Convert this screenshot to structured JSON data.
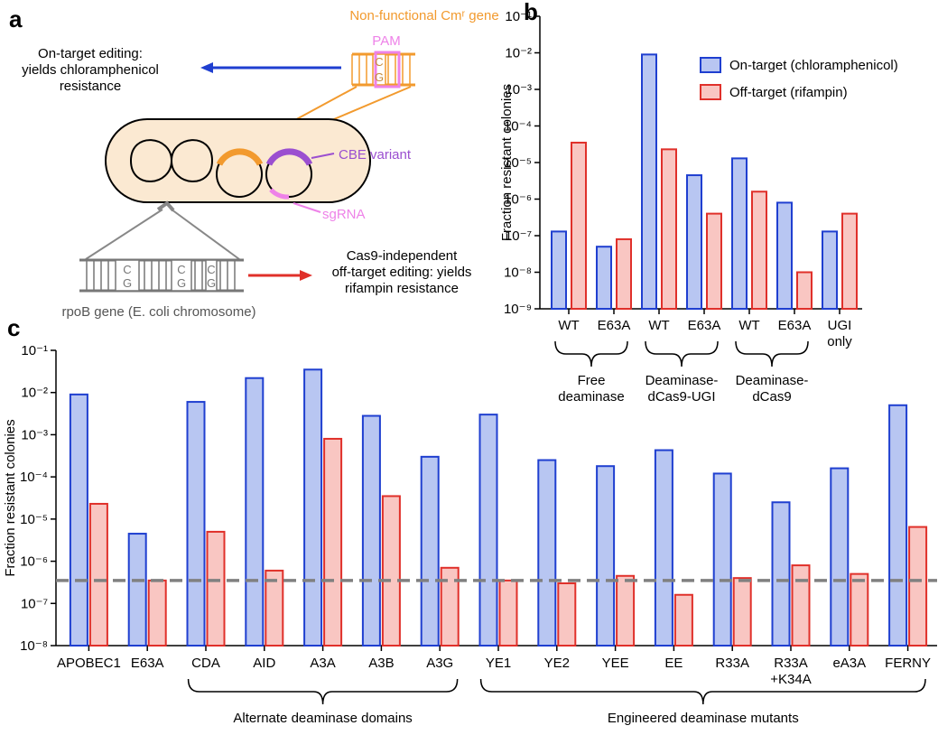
{
  "panel_a": {
    "label": "a",
    "gene_title": "Non-functional Cmʳ gene",
    "pam": "PAM",
    "base_c": "C",
    "base_g": "G",
    "on_target_text": "On-target editing:\nyields chloramphenicol\nresistance",
    "cbe": "CBE variant",
    "sgrna": "sgRNA",
    "off_target_text": "Cas9-independent\noff-target editing: yields\nrifampin resistance",
    "rpob": "rpoB gene (E. coli chromosome)"
  },
  "chart_data": [
    {
      "type": "bar",
      "panel_label": "b",
      "ylabel": "Fraction resistant colonies",
      "log_scale": true,
      "categories": [
        "WT",
        "E63A",
        "WT",
        "E63A",
        "WT",
        "E63A",
        "UGI\nonly"
      ],
      "groups": [
        "Free\ndeaminase",
        "Deaminase-\ndCas9-UGI",
        "Deaminase-\ndCas9"
      ],
      "series": [
        {
          "name": "On-target (chloramphenicol)",
          "color": "#1f3fd0",
          "fill": "#b8c6f2",
          "values": [
            1.3e-07,
            5e-08,
            0.009,
            4.5e-06,
            1.3e-05,
            8e-07,
            1.3e-07
          ]
        },
        {
          "name": "Off-target (rifampin)",
          "color": "#e0302a",
          "fill": "#f9c6c2",
          "values": [
            3.5e-05,
            8e-08,
            2.3e-05,
            4e-07,
            1.6e-06,
            1e-08,
            4e-07
          ]
        }
      ],
      "ylim": [
        1e-09,
        0.1
      ],
      "yticks": [
        {
          "value": 1e-09,
          "label": "10⁻⁹"
        },
        {
          "value": 1e-08,
          "label": "10⁻⁸"
        },
        {
          "value": 1e-07,
          "label": "10⁻⁷"
        },
        {
          "value": 1e-06,
          "label": "10⁻⁶"
        },
        {
          "value": 1e-05,
          "label": "10⁻⁵"
        },
        {
          "value": 0.0001,
          "label": "10⁻⁴"
        },
        {
          "value": 0.001,
          "label": "10⁻³"
        },
        {
          "value": 0.01,
          "label": "10⁻²"
        },
        {
          "value": 0.1,
          "label": "10⁻¹"
        }
      ],
      "legend": "top-right"
    },
    {
      "type": "bar",
      "panel_label": "c",
      "ylabel": "Fraction resistant colonies",
      "log_scale": true,
      "categories": [
        "APOBEC1",
        "E63A",
        "CDA",
        "AID",
        "A3A",
        "A3B",
        "A3G",
        "YE1",
        "YE2",
        "YEE",
        "EE",
        "R33A",
        "R33A\n+K34A",
        "eA3A",
        "FERNY"
      ],
      "groups": [
        "Alternate deaminase domains",
        "Engineered deaminase mutants"
      ],
      "series": [
        {
          "name": "On-target (chloramphenicol)",
          "color": "#1f3fd0",
          "fill": "#b8c6f2",
          "values": [
            0.009,
            4.5e-06,
            0.006,
            0.022,
            0.035,
            0.0028,
            0.0003,
            0.003,
            0.00025,
            0.00018,
            0.00043,
            0.00012,
            2.5e-05,
            0.00016,
            0.005
          ]
        },
        {
          "name": "Off-target (rifampin)",
          "color": "#e0302a",
          "fill": "#f9c6c2",
          "values": [
            2.3e-05,
            3.5e-07,
            5e-06,
            6e-07,
            0.0008,
            3.5e-05,
            7e-07,
            3.5e-07,
            3e-07,
            4.5e-07,
            1.6e-07,
            4e-07,
            8e-07,
            5e-07,
            6.5e-06
          ]
        }
      ],
      "reference_line": 3.5e-07,
      "ylim": [
        1e-08,
        0.1
      ],
      "yticks": [
        {
          "value": 1e-08,
          "label": "10⁻⁸"
        },
        {
          "value": 1e-07,
          "label": "10⁻⁷"
        },
        {
          "value": 1e-06,
          "label": "10⁻⁶"
        },
        {
          "value": 1e-05,
          "label": "10⁻⁵"
        },
        {
          "value": 0.0001,
          "label": "10⁻⁴"
        },
        {
          "value": 0.001,
          "label": "10⁻³"
        },
        {
          "value": 0.01,
          "label": "10⁻²"
        },
        {
          "value": 0.1,
          "label": "10⁻¹"
        }
      ]
    }
  ]
}
